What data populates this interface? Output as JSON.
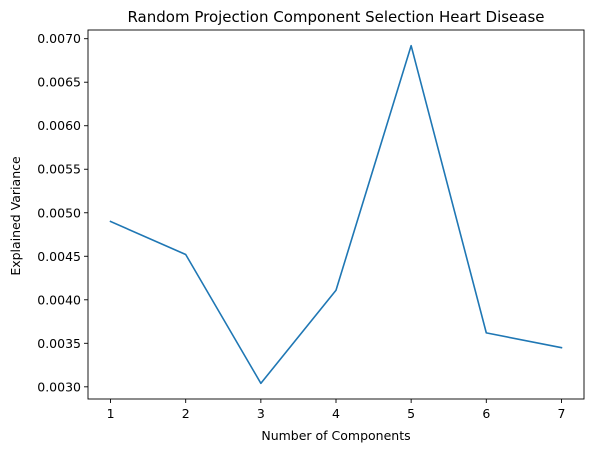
{
  "chart_data": {
    "type": "line",
    "title": "Random Projection Component Selection Heart Disease",
    "xlabel": "Number of Components",
    "ylabel": "Explained Variance",
    "x": [
      1,
      2,
      3,
      4,
      5,
      6,
      7
    ],
    "series": [
      {
        "values": [
          0.0049,
          0.00452,
          0.00304,
          0.00411,
          0.00692,
          0.00362,
          0.00345
        ]
      }
    ],
    "xlim": [
      0.7,
      7.3
    ],
    "ylim": [
      0.00286,
      0.0071
    ],
    "xticks": [
      1,
      2,
      3,
      4,
      5,
      6,
      7
    ],
    "xtick_labels": [
      "1",
      "2",
      "3",
      "4",
      "5",
      "6",
      "7"
    ],
    "yticks": [
      0.003,
      0.0035,
      0.004,
      0.0045,
      0.005,
      0.0055,
      0.006,
      0.0065,
      0.007
    ],
    "ytick_labels": [
      "0.0030",
      "0.0035",
      "0.0040",
      "0.0045",
      "0.0050",
      "0.0055",
      "0.0060",
      "0.0065",
      "0.0070"
    ],
    "grid": false,
    "line_color": "#1f77b4"
  }
}
